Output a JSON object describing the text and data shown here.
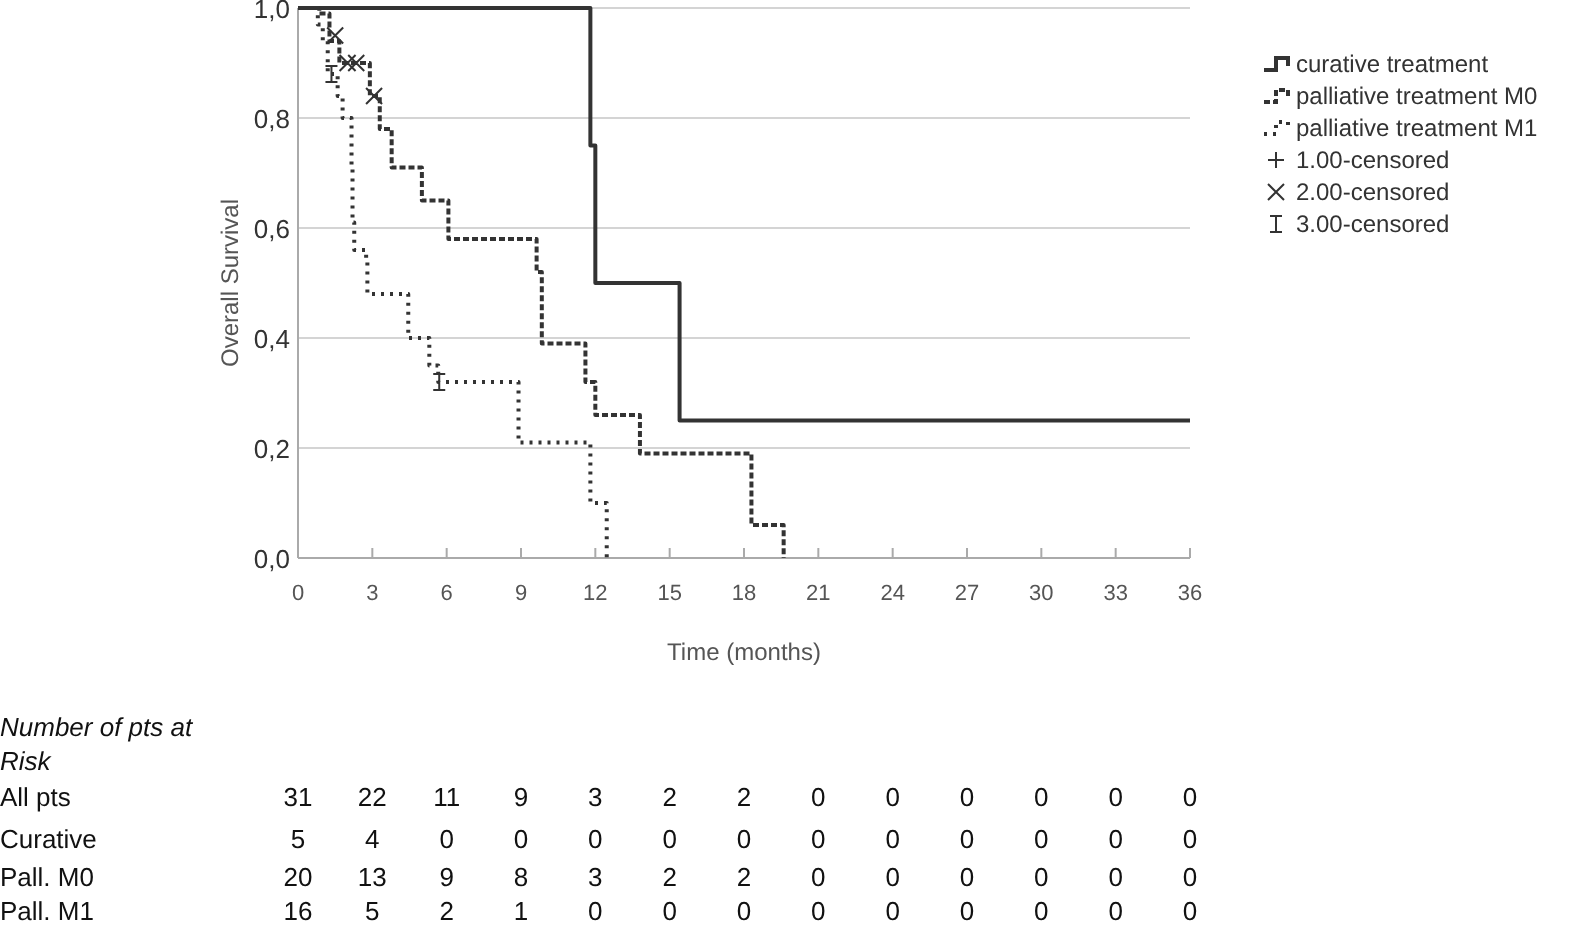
{
  "chart_data": {
    "type": "step",
    "xlabel": "Time (months)",
    "ylabel": "Overall Survival",
    "xlim": [
      0,
      36
    ],
    "xticks": [
      0,
      3,
      6,
      9,
      12,
      15,
      18,
      21,
      24,
      27,
      30,
      33,
      36
    ],
    "ylim": [
      0,
      1
    ],
    "yticks": [
      {
        "value": 0,
        "label": "0,0"
      },
      {
        "value": 0.2,
        "label": "0,2"
      },
      {
        "value": 0.4,
        "label": "0,4"
      },
      {
        "value": 0.6,
        "label": "0,6"
      },
      {
        "value": 0.8,
        "label": "0,8"
      },
      {
        "value": 1,
        "label": "1,0"
      }
    ],
    "grid": "y",
    "legend": "right",
    "series": [
      {
        "name": "curative treatment",
        "color": "#333333",
        "line_style": "solid",
        "x": [
          0,
          11.8,
          12,
          15.4,
          36
        ],
        "values": [
          1,
          0.75,
          0.5,
          0.25,
          0.25
        ]
      },
      {
        "name": "palliative treatment M0",
        "color": "#333333",
        "line_style": "dashed",
        "x": [
          0,
          0.86,
          1.27,
          1.67,
          2.9,
          3.3,
          3.78,
          5.0,
          6.07,
          9.63,
          9.84,
          11.6,
          12.0,
          13.8,
          18.3,
          19.6
        ],
        "values": [
          1,
          0.99,
          0.94,
          0.9,
          0.84,
          0.78,
          0.71,
          0.65,
          0.58,
          0.52,
          0.39,
          0.32,
          0.26,
          0.19,
          0.06,
          0
        ]
      },
      {
        "name": "palliative treatment M1",
        "color": "#333333",
        "line_style": "dotted",
        "x": [
          0,
          0.8,
          1.0,
          1.2,
          1.6,
          1.8,
          2.16,
          2.2,
          2.27,
          2.75,
          2.8,
          4.45,
          5.3,
          5.66,
          8.9,
          11.8,
          12.46
        ],
        "values": [
          1,
          0.97,
          0.94,
          0.88,
          0.84,
          0.8,
          0.71,
          0.61,
          0.56,
          0.54,
          0.48,
          0.4,
          0.35,
          0.32,
          0.21,
          0.1,
          0
        ]
      },
      {
        "name": "1.00-censored",
        "type": "scatter",
        "marker": "cross",
        "color": "#333333"
      },
      {
        "name": "2.00-censored",
        "type": "scatter",
        "color": "#333333",
        "x": [
          1.5,
          2.0,
          2.35,
          3.07
        ],
        "values": [
          0.95,
          0.9,
          0.9,
          0.84
        ]
      },
      {
        "name": "3.00-censored",
        "type": "scatter",
        "color": "#333333",
        "x": [
          1.35,
          5.7
        ],
        "values": [
          0.88,
          0.32
        ]
      }
    ],
    "annotations": [
      "Number of pts at Risk",
      "All pts\t31\t22\t11\t9\t3\t2\t2\t0\t0\t0\t0\t0\t0",
      "Curative\t5\t4\t0\t0\t0\t0\t0\t0\t0\t0\t0\t0\t0",
      "Pall. M0\t20\t13\t9\t8\t3\t2\t2\t0\t0\t0\t0\t0\t0",
      "Pall. M1\t16\t5\t2\t1\t0\t0\t0\t0\t0\t0\t0\t0\t0"
    ]
  }
}
